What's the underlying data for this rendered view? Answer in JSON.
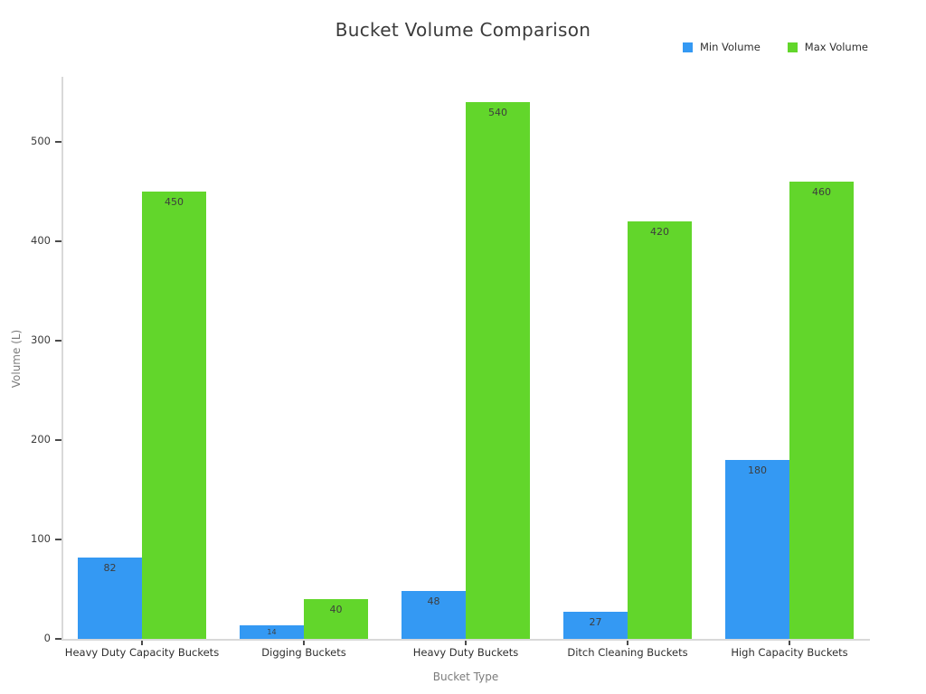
{
  "title": "Bucket Volume Comparison",
  "legend": {
    "items": [
      {
        "label": "Min Volume",
        "color": "#3499F3"
      },
      {
        "label": "Max Volume",
        "color": "#62D62B"
      }
    ]
  },
  "axes": {
    "x_title": "Bucket Type",
    "y_title": "Volume (L)"
  },
  "chart_data": {
    "type": "bar",
    "title": "Bucket Volume Comparison",
    "xlabel": "Bucket Type",
    "ylabel": "Volume (L)",
    "categories": [
      "Heavy Duty Capacity Buckets",
      "Digging Buckets",
      "Heavy Duty Buckets",
      "Ditch Cleaning Buckets",
      "High Capacity Buckets"
    ],
    "series": [
      {
        "name": "Min Volume",
        "color": "#3499F3",
        "values": [
          82,
          14,
          48,
          27,
          180
        ]
      },
      {
        "name": "Max Volume",
        "color": "#62D62B",
        "values": [
          450,
          40,
          540,
          420,
          460
        ]
      }
    ],
    "yticks": [
      0,
      100,
      200,
      300,
      400,
      500
    ],
    "ylim": [
      0,
      566
    ],
    "grid": false,
    "bar_labels": true,
    "legend_position": "top-right"
  }
}
